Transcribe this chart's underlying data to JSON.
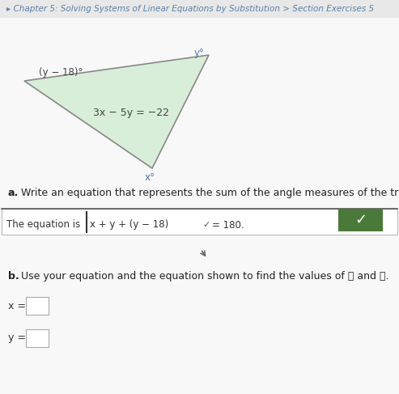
{
  "header_text": "▸ Chapter 5: Solving Systems of Linear Equations by Substitution > Section Exercises 5",
  "header_color": "#5a7fa8",
  "header_bg": "#e8e8e8",
  "bg_color": "#f0f0f0",
  "content_bg": "#f8f8f8",
  "triangle_fill": "#d8eed8",
  "triangle_edge": "#888888",
  "top_left_label": "(y − 18)°",
  "top_right_label": "y°",
  "center_label": "3x − 5y = −22",
  "bottom_label": "x°",
  "part_a_bold": "a.",
  "part_a_text": " Write an equation that represents the sum of the angle measures of the triangle.",
  "equation_prefix": "The equation is ",
  "equation_box_content": "x + y + (y − 18)",
  "checkmark_small": "✔",
  "equation_suffix": "= 180.",
  "checkmark_color": "#ffffff",
  "checkmark_bg": "#4a7a3a",
  "part_b_bold": "b.",
  "part_b_text": " Use your equation and the equation shown to find the values of ᶇ and ᶆ.",
  "x_prefix": "x =",
  "y_prefix": "y =",
  "font_size_header": 7.5,
  "font_size_body": 9,
  "font_size_triangle_label": 8.5,
  "font_size_triangle_eq": 9
}
